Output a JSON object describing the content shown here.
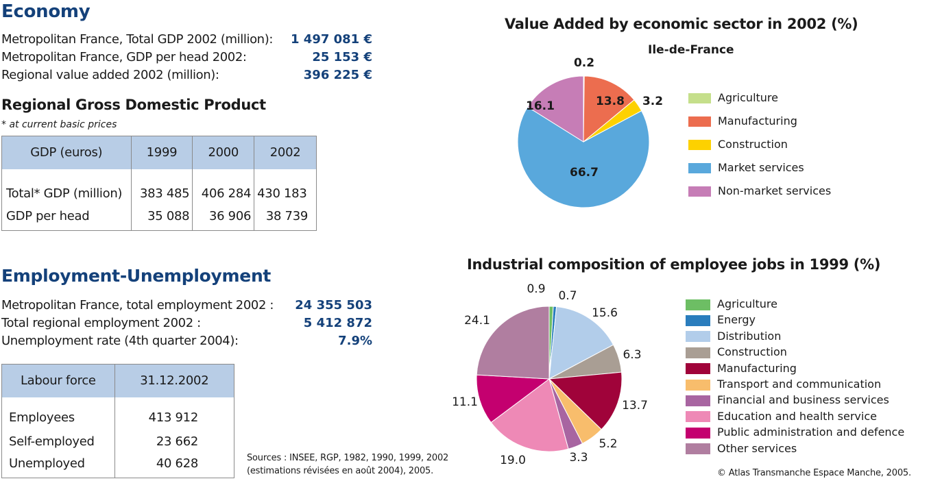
{
  "economy": {
    "title": "Economy",
    "rows": [
      {
        "label": "Metropolitan France, Total GDP 2002 (million):",
        "value": "1 497 081 €"
      },
      {
        "label": "Metropolitan France, GDP per head 2002:",
        "value": "25 153 €"
      },
      {
        "label": "Regional value added 2002 (million):",
        "value": "396 225 €"
      }
    ]
  },
  "gdp": {
    "title": "Regional Gross Domestic Product",
    "note": "* at current basic prices",
    "headers": [
      "GDP (euros)",
      "1999",
      "2000",
      "2002"
    ],
    "rows": [
      [
        "Total* GDP (million)",
        "383 485",
        "406 284",
        "430 183"
      ],
      [
        "GDP per head",
        "35 088",
        "36 906",
        "38 739"
      ]
    ]
  },
  "employment": {
    "title": "Employment-Unemployment",
    "rows": [
      {
        "label": "Metropolitan France, total employment 2002 :",
        "value": "24 355 503"
      },
      {
        "label": "Total regional employment 2002 :",
        "value": "5 412 872"
      },
      {
        "label": "Unemployment rate (4th quarter 2004):",
        "value": "7.9%"
      }
    ]
  },
  "labour": {
    "headers": [
      "Labour force",
      "31.12.2002"
    ],
    "rows": [
      [
        "Employees",
        "413 912"
      ],
      [
        "Self-employed",
        "23 662"
      ],
      [
        "Unemployed",
        "40 628"
      ]
    ]
  },
  "sources": {
    "line1": "Sources : INSEE, RGP, 1982, 1990, 1999, 2002",
    "line2": "(estimations révisées en août 2004), 2005."
  },
  "copyright": "© Atlas Transmanche Espace Manche, 2005.",
  "chart_data": [
    {
      "type": "pie",
      "title": "Value Added by economic sector in 2002 (%)",
      "subtitle": "Ile-de-France",
      "legend": "right",
      "slices": [
        {
          "label": "Agriculture",
          "value": 0.2,
          "display": "0.2",
          "color": "#c5df8b"
        },
        {
          "label": "Manufacturing",
          "value": 13.8,
          "display": "13.8",
          "color": "#ec6d4f"
        },
        {
          "label": "Construction",
          "value": 3.2,
          "display": "3.2",
          "color": "#fdd100"
        },
        {
          "label": "Market services",
          "value": 66.7,
          "display": "66.7",
          "color": "#59a8dc"
        },
        {
          "label": "Non-market services",
          "value": 16.1,
          "display": "16.1",
          "color": "#c67db6"
        }
      ]
    },
    {
      "type": "pie",
      "title": "Industrial composition of employee jobs in 1999 (%)",
      "legend": "right",
      "slices": [
        {
          "label": "Agriculture",
          "value": 0.9,
          "display": "0.9",
          "color": "#6dbe64"
        },
        {
          "label": "Energy",
          "value": 0.7,
          "display": "0.7",
          "color": "#2a7dbd"
        },
        {
          "label": "Distribution",
          "value": 15.6,
          "display": "15.6",
          "color": "#b2cdea"
        },
        {
          "label": "Construction",
          "value": 6.3,
          "display": "6.3",
          "color": "#a99e94"
        },
        {
          "label": "Manufacturing",
          "value": 13.7,
          "display": "13.7",
          "color": "#a0033a"
        },
        {
          "label": "Transport and communication",
          "value": 5.2,
          "display": "5.2",
          "color": "#f8bd6c"
        },
        {
          "label": "Financial and business services",
          "value": 3.3,
          "display": "3.3",
          "color": "#a865a1"
        },
        {
          "label": "Education and health service",
          "value": 19.0,
          "display": "19.0",
          "color": "#ee89b6"
        },
        {
          "label": "Public administration and defence",
          "value": 11.1,
          "display": "11.1",
          "color": "#c4006f"
        },
        {
          "label": "Other services",
          "value": 24.1,
          "display": "24.1",
          "color": "#b07ea0"
        }
      ]
    }
  ]
}
